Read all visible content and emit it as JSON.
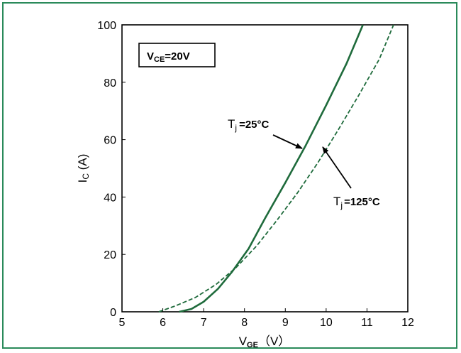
{
  "chart_data": {
    "type": "line",
    "xlabel": {
      "main": "V",
      "sub": "GE",
      "unit": "（V）"
    },
    "ylabel": {
      "main": "I",
      "sub": "C",
      "unit": " (A)"
    },
    "xlim": [
      5,
      12
    ],
    "ylim": [
      0,
      100
    ],
    "xticks": [
      "5",
      "6",
      "7",
      "8",
      "9",
      "10",
      "11",
      "12"
    ],
    "yticks": [
      "0",
      "20",
      "40",
      "60",
      "80",
      "100"
    ],
    "grid": false,
    "legend_box": {
      "main": "V",
      "sub": "CE",
      "value": "=20V"
    },
    "series": [
      {
        "label_main": "T",
        "label_sub": "j",
        "label_value": "=25°C",
        "style": "solid",
        "color": "#1f6b3c",
        "x": [
          6.4,
          6.7,
          7.0,
          7.35,
          7.7,
          8.1,
          8.5,
          9.0,
          9.5,
          10.0,
          10.5,
          10.9
        ],
        "y": [
          0,
          1,
          3.5,
          8,
          14,
          22,
          32.5,
          45,
          58,
          72,
          86.5,
          100
        ]
      },
      {
        "label_main": "T",
        "label_sub": "j",
        "label_value": "=125°C",
        "style": "dashed",
        "color": "#1f6b3c",
        "x": [
          5.9,
          6.3,
          6.8,
          7.3,
          7.8,
          8.3,
          8.8,
          9.3,
          9.8,
          10.3,
          10.8,
          11.3,
          11.65
        ],
        "y": [
          0,
          2,
          5,
          9.5,
          15.5,
          23,
          32,
          41.5,
          52,
          63.5,
          75.5,
          88,
          100
        ]
      }
    ]
  }
}
